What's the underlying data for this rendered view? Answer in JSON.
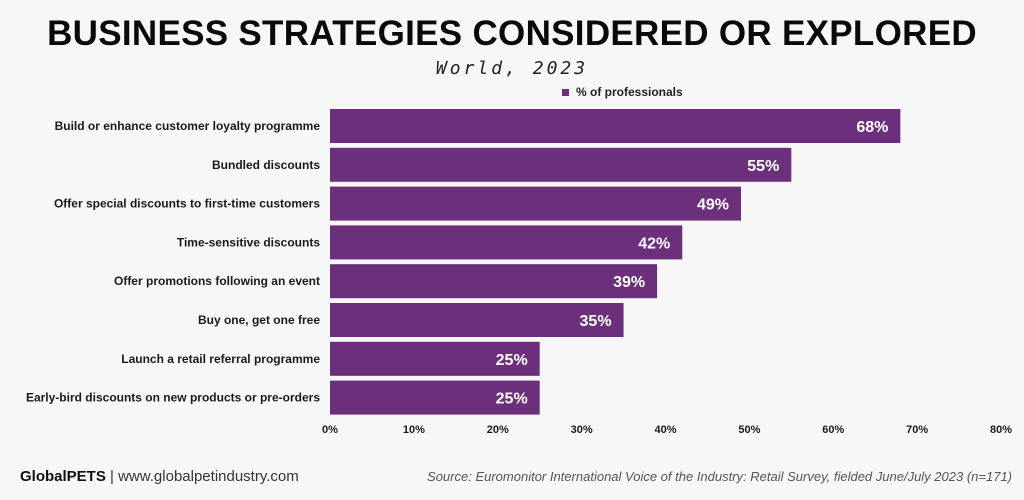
{
  "chart_data": {
    "type": "bar",
    "orientation": "horizontal",
    "title": "BUSINESS STRATEGIES CONSIDERED OR EXPLORED",
    "subtitle": "World, 2023",
    "legend": "% of professionals",
    "categories": [
      "Build or enhance customer loyalty programme",
      "Bundled discounts",
      "Offer special discounts to first-time customers",
      "Time-sensitive discounts",
      "Offer promotions following an event",
      "Buy one, get one free",
      "Launch a retail referral programme",
      "Early-bird discounts on new products or pre-orders"
    ],
    "values": [
      68,
      55,
      49,
      42,
      39,
      35,
      25,
      25
    ],
    "value_labels": [
      "68%",
      "55%",
      "49%",
      "42%",
      "39%",
      "35%",
      "25%",
      "25%"
    ],
    "xlim": [
      0,
      80
    ],
    "xticks": [
      "0%",
      "10%",
      "20%",
      "30%",
      "40%",
      "50%",
      "60%",
      "70%",
      "80%"
    ],
    "bar_color": "#6b2f7b"
  },
  "footer": {
    "brand": "GlobalPETS",
    "separator": " | ",
    "url": "www.globalpetindustry.com",
    "source": "Source: Euromonitor International Voice of the Industry: Retail Survey, fielded June/July 2023 (n=171)"
  }
}
